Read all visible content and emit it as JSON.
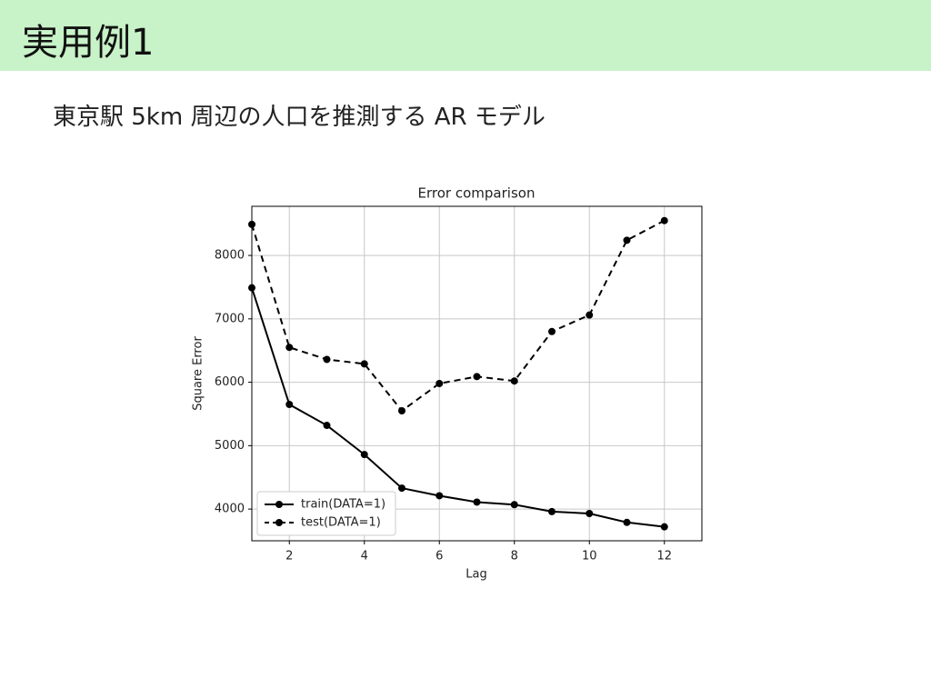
{
  "slide": {
    "title": "実用例1",
    "subtitle": "東京駅 5km 周辺の人口を推測する AR モデル"
  },
  "chart_data": {
    "type": "line",
    "title": "Error comparison",
    "x_label": "Lag",
    "y_label": "Square Error",
    "x": [
      1,
      2,
      3,
      4,
      5,
      6,
      7,
      8,
      9,
      10,
      11,
      12
    ],
    "series": [
      {
        "name": "train(DATA=1)",
        "color": "#000000",
        "linestyle": "solid",
        "values": [
          7490,
          5650,
          5320,
          4860,
          4330,
          4210,
          4110,
          4070,
          3960,
          3930,
          3790,
          3720
        ]
      },
      {
        "name": "test(DATA=1)",
        "color": "#000000",
        "linestyle": "dashed",
        "values": [
          8490,
          6550,
          6360,
          6290,
          5550,
          5980,
          6090,
          6020,
          6800,
          7060,
          8240,
          8550
        ]
      }
    ],
    "xlim": [
      1,
      13
    ],
    "ylim": [
      3500,
      8775
    ],
    "xticks": [
      2,
      4,
      6,
      8,
      10,
      12
    ],
    "yticks": [
      4000,
      5000,
      6000,
      7000,
      8000
    ],
    "grid": true,
    "legend": "lower left"
  }
}
